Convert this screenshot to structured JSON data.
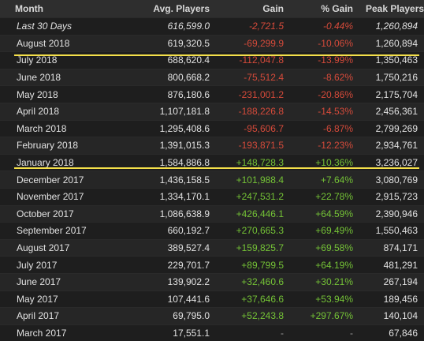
{
  "table": {
    "headers": {
      "month": "Month",
      "avg": "Avg. Players",
      "gain": "Gain",
      "pct": "% Gain",
      "peak": "Peak Players"
    },
    "rows": [
      {
        "month": "Last 30 Days",
        "avg": "616,599.0",
        "gain": "-2,721.5",
        "pct": "-0.44%",
        "peak": "1,260,894",
        "trend": "neg"
      },
      {
        "month": "August 2018",
        "avg": "619,320.5",
        "gain": "-69,299.9",
        "pct": "-10.06%",
        "peak": "1,260,894",
        "trend": "neg"
      },
      {
        "month": "July 2018",
        "avg": "688,620.4",
        "gain": "-112,047.8",
        "pct": "-13.99%",
        "peak": "1,350,463",
        "trend": "neg"
      },
      {
        "month": "June 2018",
        "avg": "800,668.2",
        "gain": "-75,512.4",
        "pct": "-8.62%",
        "peak": "1,750,216",
        "trend": "neg"
      },
      {
        "month": "May 2018",
        "avg": "876,180.6",
        "gain": "-231,001.2",
        "pct": "-20.86%",
        "peak": "2,175,704",
        "trend": "neg"
      },
      {
        "month": "April 2018",
        "avg": "1,107,181.8",
        "gain": "-188,226.8",
        "pct": "-14.53%",
        "peak": "2,456,361",
        "trend": "neg"
      },
      {
        "month": "March 2018",
        "avg": "1,295,408.6",
        "gain": "-95,606.7",
        "pct": "-6.87%",
        "peak": "2,799,269",
        "trend": "neg"
      },
      {
        "month": "February 2018",
        "avg": "1,391,015.3",
        "gain": "-193,871.5",
        "pct": "-12.23%",
        "peak": "2,934,761",
        "trend": "neg"
      },
      {
        "month": "January 2018",
        "avg": "1,584,886.8",
        "gain": "+148,728.3",
        "pct": "+10.36%",
        "peak": "3,236,027",
        "trend": "pos"
      },
      {
        "month": "December 2017",
        "avg": "1,436,158.5",
        "gain": "+101,988.4",
        "pct": "+7.64%",
        "peak": "3,080,769",
        "trend": "pos"
      },
      {
        "month": "November 2017",
        "avg": "1,334,170.1",
        "gain": "+247,531.2",
        "pct": "+22.78%",
        "peak": "2,915,723",
        "trend": "pos"
      },
      {
        "month": "October 2017",
        "avg": "1,086,638.9",
        "gain": "+426,446.1",
        "pct": "+64.59%",
        "peak": "2,390,946",
        "trend": "pos"
      },
      {
        "month": "September 2017",
        "avg": "660,192.7",
        "gain": "+270,665.3",
        "pct": "+69.49%",
        "peak": "1,550,463",
        "trend": "pos"
      },
      {
        "month": "August 2017",
        "avg": "389,527.4",
        "gain": "+159,825.7",
        "pct": "+69.58%",
        "peak": "874,171",
        "trend": "pos"
      },
      {
        "month": "July 2017",
        "avg": "229,701.7",
        "gain": "+89,799.5",
        "pct": "+64.19%",
        "peak": "481,291",
        "trend": "pos"
      },
      {
        "month": "June 2017",
        "avg": "139,902.2",
        "gain": "+32,460.6",
        "pct": "+30.21%",
        "peak": "267,194",
        "trend": "pos"
      },
      {
        "month": "May 2017",
        "avg": "107,441.6",
        "gain": "+37,646.6",
        "pct": "+53.94%",
        "peak": "189,456",
        "trend": "pos"
      },
      {
        "month": "April 2017",
        "avg": "69,795.0",
        "gain": "+52,243.8",
        "pct": "+297.67%",
        "peak": "140,104",
        "trend": "pos"
      },
      {
        "month": "March 2017",
        "avg": "17,551.1",
        "gain": "-",
        "pct": "-",
        "peak": "67,846",
        "trend": "nil"
      }
    ]
  },
  "colors": {
    "background": "#1b1b1b",
    "header_bg": "#2e2e2e",
    "negative": "#d44a3a",
    "positive": "#74c236",
    "highlight_line": "#f5e04a"
  }
}
